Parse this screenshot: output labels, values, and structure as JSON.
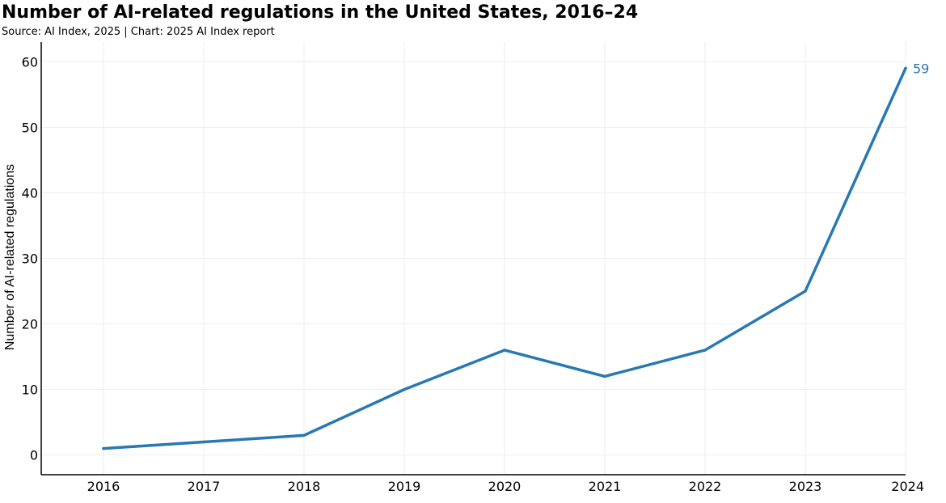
{
  "header": {
    "title": "Number of AI-related regulations in the United States, 2016–24",
    "subtitle": "Source: AI Index, 2025 | Chart: 2025 AI Index report"
  },
  "chart_data": {
    "type": "line",
    "title": "Number of AI-related regulations in the United States, 2016–24",
    "subtitle": "Source: AI Index, 2025 | Chart: 2025 AI Index report",
    "xlabel": "",
    "ylabel": "Number of AI-related regulations",
    "categories": [
      "2016",
      "2017",
      "2018",
      "2019",
      "2020",
      "2021",
      "2022",
      "2023",
      "2024"
    ],
    "series": [
      {
        "values": [
          1,
          2,
          3,
          10,
          16,
          12,
          16,
          25,
          59
        ],
        "color": "#2878b3"
      }
    ],
    "end_label": "59",
    "ylim": [
      -3,
      63
    ],
    "yticks": [
      0,
      10,
      20,
      30,
      40,
      50,
      60
    ],
    "grid": true,
    "legend": "none"
  }
}
